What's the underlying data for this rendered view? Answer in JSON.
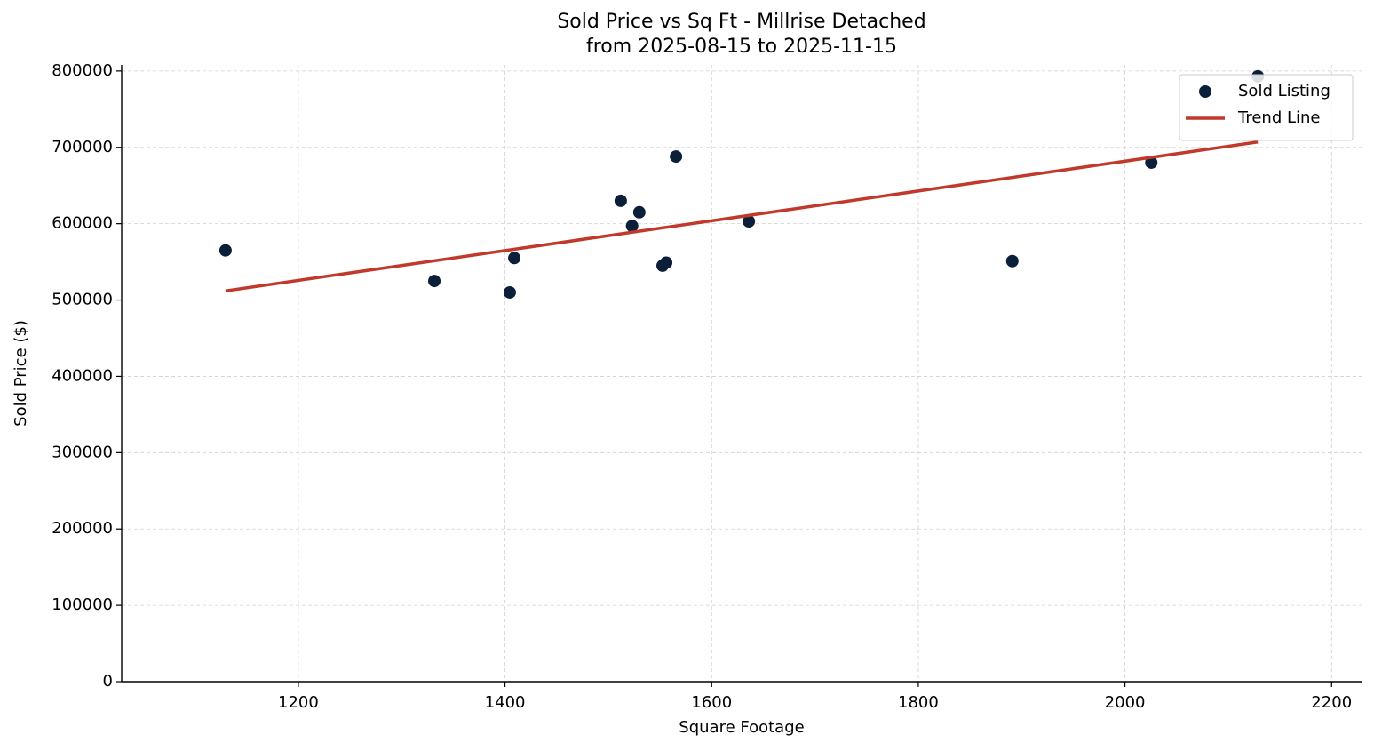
{
  "chart_data": {
    "type": "scatter",
    "title": "Sold Price vs Sq Ft - Millrise Detached",
    "subtitle": "from 2025-08-15 to 2025-11-15",
    "x_label": "Square Footage",
    "y_label": "Sold Price ($)",
    "xlim": [
      1029,
      2229
    ],
    "ylim": [
      0,
      808000
    ],
    "xticks": [
      1200,
      1400,
      1600,
      1800,
      2000,
      2200
    ],
    "yticks": [
      0,
      100000,
      200000,
      300000,
      400000,
      500000,
      600000,
      700000,
      800000
    ],
    "grid": true,
    "legend": "upper right",
    "series": [
      {
        "name": "Sold Listing",
        "kind": "scatter",
        "color": "#0b1f3a",
        "x": [
          1129.5,
          1331.6,
          1404.6,
          1409,
          1512,
          1530,
          1523,
          1552.5,
          1556,
          1565.5,
          1636,
          1891,
          2025.5,
          2128.6
        ],
        "values": [
          565000,
          525000,
          510000,
          555000,
          630000,
          615000,
          597000,
          545000,
          549000,
          688000,
          603000,
          551000,
          680000,
          793000
        ]
      },
      {
        "name": "Trend Line",
        "kind": "line",
        "color": "#c0392b",
        "x": [
          1129.5,
          2128.6
        ],
        "values": [
          512000,
          707000
        ]
      }
    ]
  }
}
